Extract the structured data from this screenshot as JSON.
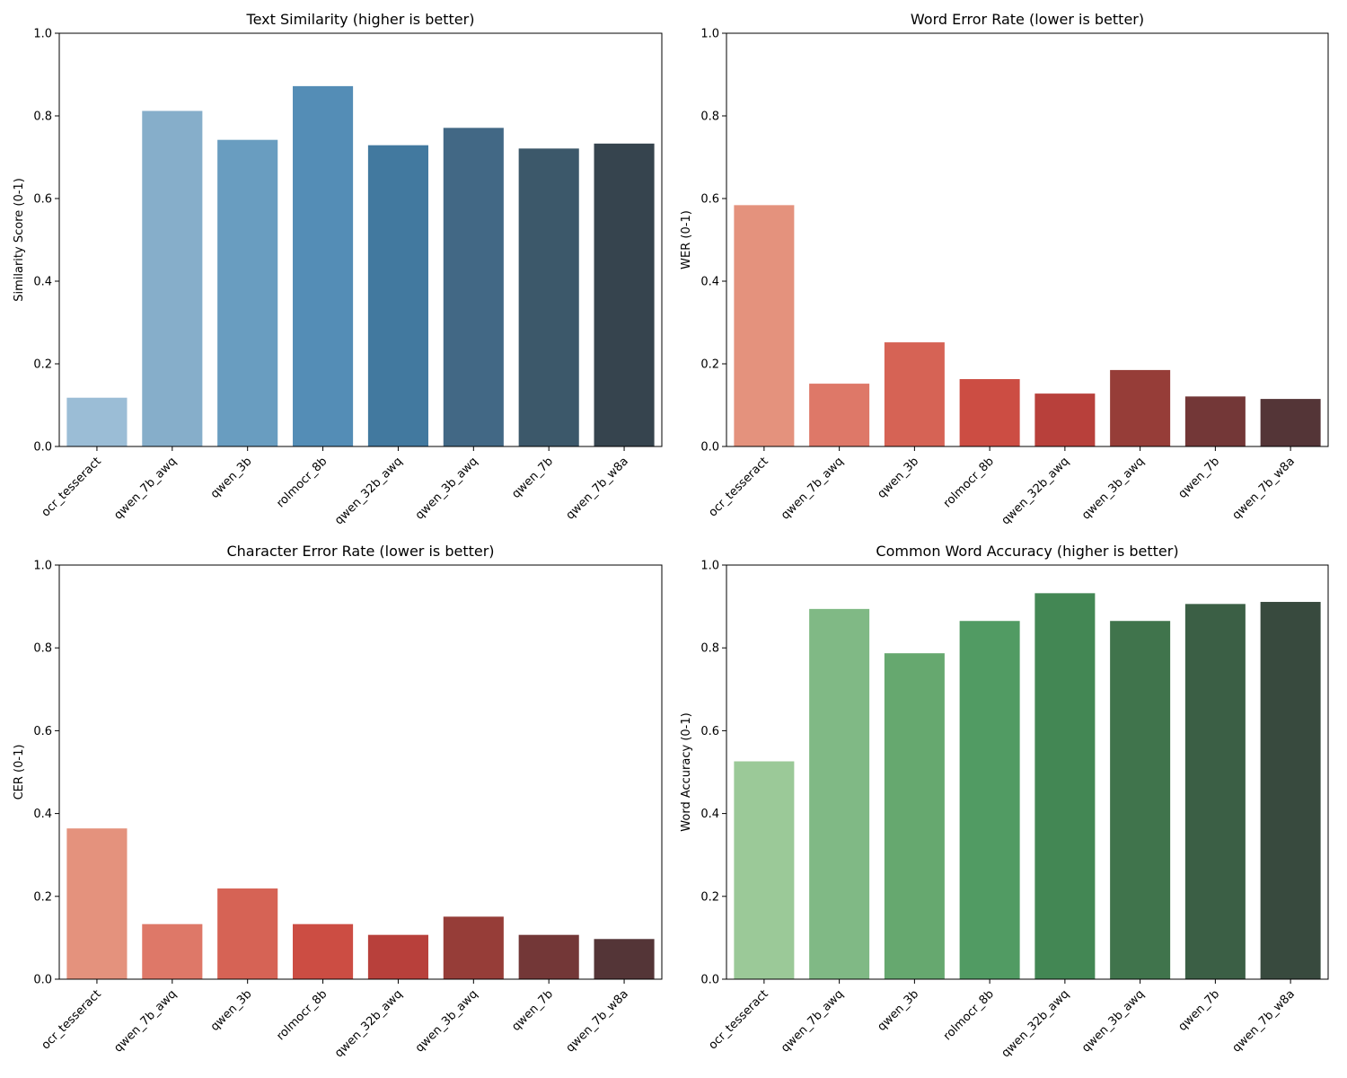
{
  "chart_data": [
    {
      "type": "bar",
      "title": "Text Similarity (higher is better)",
      "xlabel": "",
      "ylabel": "Similarity Score (0-1)",
      "ylim": [
        0,
        1
      ],
      "yticks": [
        "0.0",
        "0.2",
        "0.4",
        "0.6",
        "0.8",
        "1.0"
      ],
      "grid": false,
      "categories": [
        "ocr_tesseract",
        "qwen_7b_awq",
        "qwen_3b",
        "rolmocr_8b",
        "qwen_32b_awq",
        "qwen_3b_awq",
        "qwen_7b",
        "qwen_7b_w8a"
      ],
      "values": [
        0.118,
        0.812,
        0.742,
        0.872,
        0.729,
        0.771,
        0.721,
        0.733
      ],
      "colors": [
        "#9bbdd6",
        "#86aeca",
        "#699dc0",
        "#548db6",
        "#42799f",
        "#426885",
        "#3c586a",
        "#36444e"
      ]
    },
    {
      "type": "bar",
      "title": "Word Error Rate (lower is better)",
      "xlabel": "",
      "ylabel": "WER (0-1)",
      "ylim": [
        0,
        1
      ],
      "yticks": [
        "0.0",
        "0.2",
        "0.4",
        "0.6",
        "0.8",
        "1.0"
      ],
      "grid": false,
      "categories": [
        "ocr_tesseract",
        "qwen_7b_awq",
        "qwen_3b",
        "rolmocr_8b",
        "qwen_32b_awq",
        "qwen_3b_awq",
        "qwen_7b",
        "qwen_7b_w8a"
      ],
      "values": [
        0.584,
        0.152,
        0.252,
        0.163,
        0.128,
        0.185,
        0.121,
        0.115
      ],
      "colors": [
        "#e4927d",
        "#de7868",
        "#d66355",
        "#cc4d43",
        "#b8403b",
        "#963d38",
        "#733737",
        "#543537"
      ]
    },
    {
      "type": "bar",
      "title": "Character Error Rate (lower is better)",
      "xlabel": "",
      "ylabel": "CER (0-1)",
      "ylim": [
        0,
        1
      ],
      "yticks": [
        "0.0",
        "0.2",
        "0.4",
        "0.6",
        "0.8",
        "1.0"
      ],
      "grid": false,
      "categories": [
        "ocr_tesseract",
        "qwen_7b_awq",
        "qwen_3b",
        "rolmocr_8b",
        "qwen_32b_awq",
        "qwen_3b_awq",
        "qwen_7b",
        "qwen_7b_w8a"
      ],
      "values": [
        0.364,
        0.133,
        0.219,
        0.133,
        0.107,
        0.151,
        0.107,
        0.097
      ],
      "colors": [
        "#e4927d",
        "#de7868",
        "#d66355",
        "#cc4d43",
        "#b8403b",
        "#963d38",
        "#733737",
        "#543537"
      ]
    },
    {
      "type": "bar",
      "title": "Common Word Accuracy (higher is better)",
      "xlabel": "",
      "ylabel": "Word Accuracy (0-1)",
      "ylim": [
        0,
        1
      ],
      "yticks": [
        "0.0",
        "0.2",
        "0.4",
        "0.6",
        "0.8",
        "1.0"
      ],
      "grid": false,
      "categories": [
        "ocr_tesseract",
        "qwen_7b_awq",
        "qwen_3b",
        "rolmocr_8b",
        "qwen_32b_awq",
        "qwen_3b_awq",
        "qwen_7b",
        "qwen_7b_w8a"
      ],
      "values": [
        0.526,
        0.894,
        0.787,
        0.865,
        0.932,
        0.865,
        0.906,
        0.911
      ],
      "colors": [
        "#9bc998",
        "#80b985",
        "#66a86f",
        "#519b63",
        "#438754",
        "#40744c",
        "#3b5f45",
        "#384a3e"
      ]
    }
  ]
}
